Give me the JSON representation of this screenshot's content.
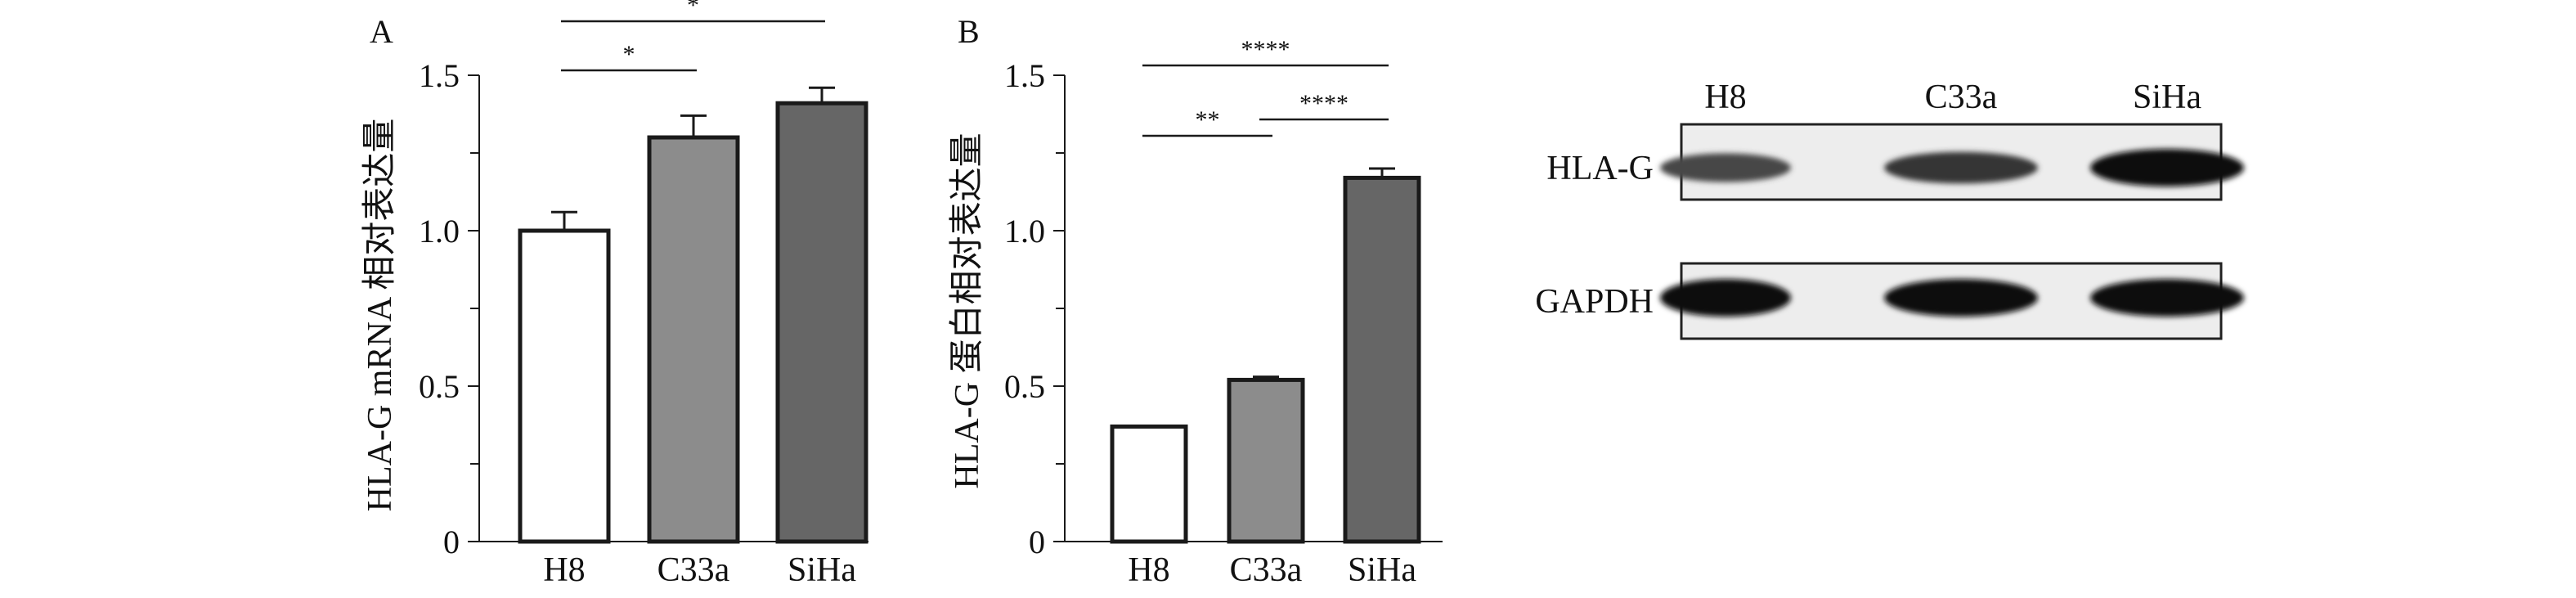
{
  "panel_a": {
    "label": "A",
    "ylabel": "HLA-G mRNA 相对表达量",
    "yticks": [
      "0",
      "0.5",
      "1.0",
      "1.5"
    ],
    "sig_pairs": [
      {
        "from": 0,
        "to": 1,
        "mark": "*"
      },
      {
        "from": 0,
        "to": 2,
        "mark": "*"
      }
    ]
  },
  "panel_b": {
    "label": "B",
    "ylabel": "HLA-G 蛋白相对表达量",
    "yticks": [
      "0",
      "0.5",
      "1.0",
      "1.5"
    ],
    "sig_pairs": [
      {
        "from": 0,
        "to": 1,
        "mark": "**"
      },
      {
        "from": 1,
        "to": 2,
        "mark": "****"
      },
      {
        "from": 0,
        "to": 2,
        "mark": "****"
      }
    ]
  },
  "blot": {
    "lanes": [
      "H8",
      "C33a",
      "SiHa"
    ],
    "rows": [
      {
        "label": "HLA-G",
        "intensity": [
          0.55,
          0.7,
          1.0
        ]
      },
      {
        "label": "GAPDH",
        "intensity": [
          1.0,
          1.0,
          1.0
        ]
      }
    ]
  },
  "colors": {
    "h8": "#ffffff",
    "c33a": "#8c8c8c",
    "siha": "#666666",
    "outline": "#1a1a1a"
  },
  "chart_data": [
    {
      "type": "bar",
      "title": "",
      "xlabel": "",
      "ylabel": "HLA-G mRNA 相对表达量",
      "categories": [
        "H8",
        "C33a",
        "SiHa"
      ],
      "values": [
        1.0,
        1.3,
        1.41
      ],
      "errors": [
        0.06,
        0.07,
        0.05
      ],
      "ylim": [
        0,
        1.5
      ],
      "grid": false
    },
    {
      "type": "bar",
      "title": "",
      "xlabel": "",
      "ylabel": "HLA-G 蛋白相对表达量",
      "categories": [
        "H8",
        "C33a",
        "SiHa"
      ],
      "values": [
        0.37,
        0.52,
        1.17
      ],
      "errors": [
        0.0,
        0.01,
        0.03
      ],
      "ylim": [
        0,
        1.5
      ],
      "grid": false
    }
  ]
}
